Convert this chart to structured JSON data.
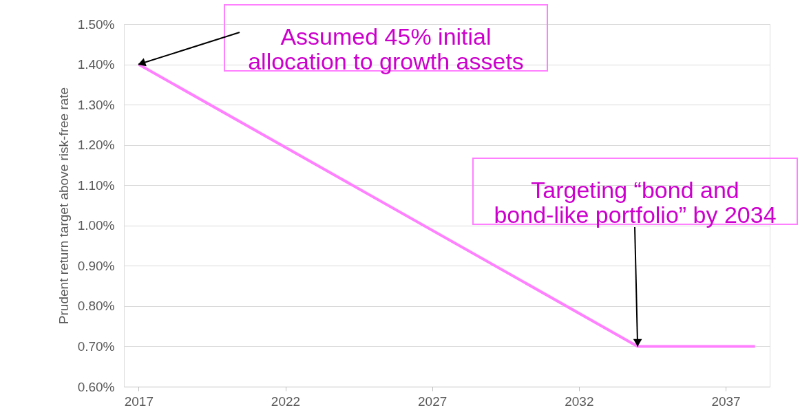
{
  "chart_data": {
    "type": "line",
    "ylabel": "Prudent return target above risk-free rate",
    "x": [
      2017,
      2034,
      2038
    ],
    "series": [
      {
        "color": "#ff80ff",
        "values": [
          1.4,
          0.7,
          0.7
        ]
      }
    ],
    "xlim": [
      2016.5,
      2038.5
    ],
    "xticks": [
      2017,
      2022,
      2027,
      2032,
      2037
    ],
    "ylim": [
      0.6,
      1.5
    ],
    "yticks": [
      {
        "value": 0.6,
        "label": "0.60%"
      },
      {
        "value": 0.7,
        "label": "0.70%"
      },
      {
        "value": 0.8,
        "label": "0.80%"
      },
      {
        "value": 0.9,
        "label": "0.90%"
      },
      {
        "value": 1.0,
        "label": "1.00%"
      },
      {
        "value": 1.1,
        "label": "1.10%"
      },
      {
        "value": 1.2,
        "label": "1.20%"
      },
      {
        "value": 1.3,
        "label": "1.30%"
      },
      {
        "value": 1.4,
        "label": "1.40%"
      },
      {
        "value": 1.5,
        "label": "1.50%"
      }
    ],
    "grid": "y",
    "marker": "none",
    "line_style": "solid",
    "annotations": [
      {
        "text": "Assumed 45% initial\nallocation to growth assets",
        "x": 2017,
        "y": 1.4
      },
      {
        "text": "Targeting “bond and\nbond-like portfolio” by 2034",
        "x": 2034,
        "y": 0.7
      }
    ]
  }
}
